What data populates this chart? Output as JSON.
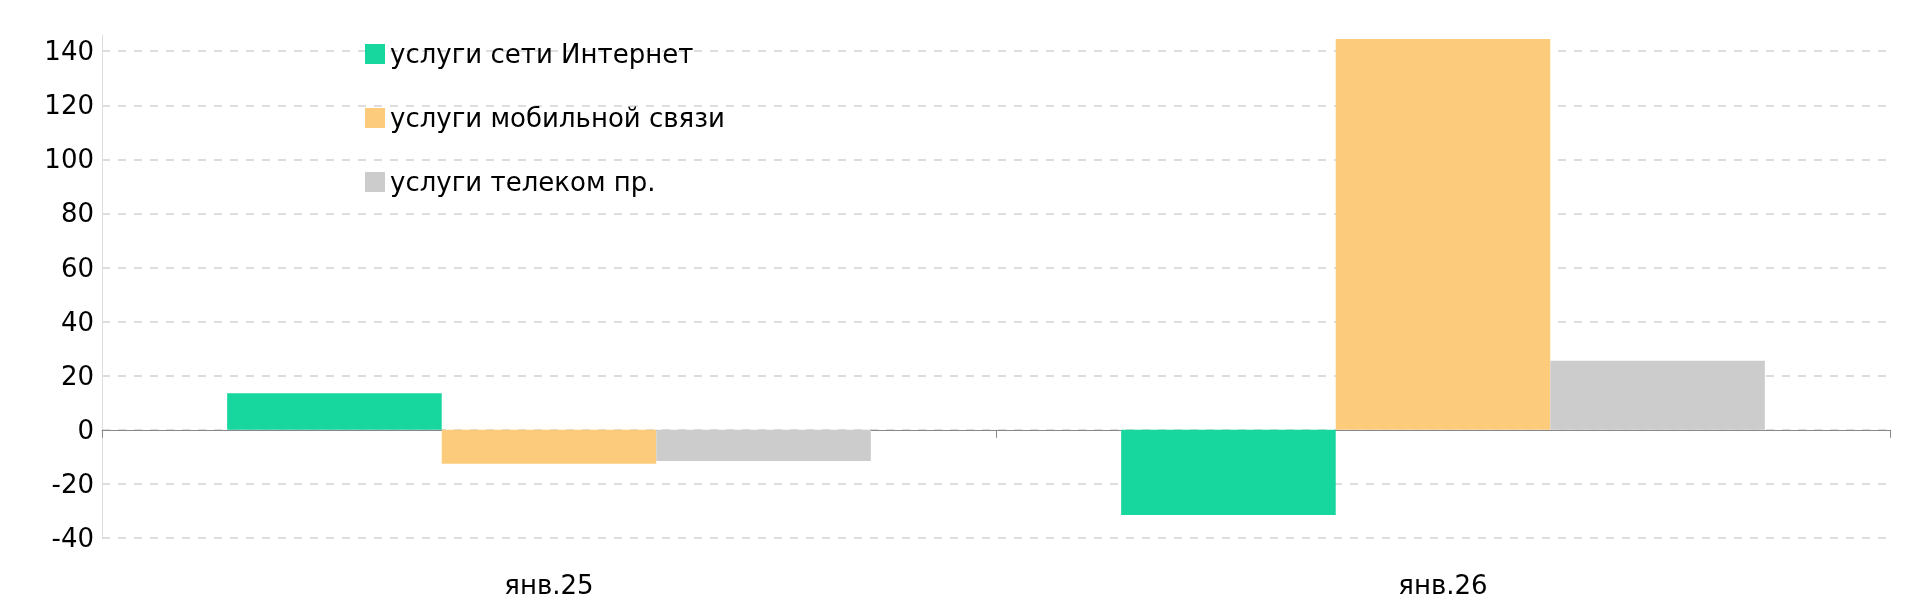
{
  "chart_data": {
    "type": "bar",
    "categories": [
      "янв.25",
      "янв.26"
    ],
    "series": [
      {
        "name": "услуги сети Интернет",
        "color": "#17d69e",
        "values": [
          13.5,
          -31.5
        ]
      },
      {
        "name": "услуги мобильной связи",
        "color": "#fccc7c",
        "values": [
          -12.5,
          144.5
        ]
      },
      {
        "name": "услуги телеком пр.",
        "color": "#cccccc",
        "values": [
          -11.5,
          25.5
        ]
      }
    ],
    "ylim": [
      -40,
      146
    ],
    "yticks": [
      -40,
      -20,
      0,
      20,
      40,
      60,
      80,
      100,
      120,
      140
    ],
    "grid": "y",
    "legend": "top left"
  }
}
